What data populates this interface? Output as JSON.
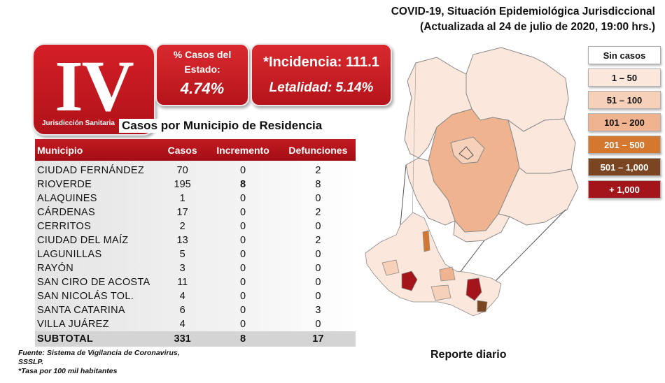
{
  "header": {
    "line1": "COVID-19, Situación Epidemiológica Jurisdiccional",
    "line2": "(Actualizada al 24 de julio de 2020, 19:00 hrs.)"
  },
  "badge": {
    "roman": "IV",
    "subtitle": "Jurisdicción Sanitaria"
  },
  "pct_card": {
    "label": "% Casos del Estado:",
    "value": "4.74%"
  },
  "incidence_card": {
    "incidence": "*Incidencia: 111.1",
    "lethality": "Letalidad: 5.14%"
  },
  "table": {
    "title": "Casos por Municipio  de Residencia",
    "headers": [
      "Municipio",
      "Casos",
      "Incremento",
      "Defunciones"
    ],
    "rows": [
      {
        "municipio": "CIUDAD FERNÁNDEZ",
        "casos": "70",
        "incremento": "0",
        "defunciones": "2"
      },
      {
        "municipio": "RIOVERDE",
        "casos": "195",
        "incremento": "8",
        "defunciones": "8"
      },
      {
        "municipio": "ALAQUINES",
        "casos": "1",
        "incremento": "0",
        "defunciones": "0"
      },
      {
        "municipio": "CÁRDENAS",
        "casos": "17",
        "incremento": "0",
        "defunciones": "2"
      },
      {
        "municipio": "CERRITOS",
        "casos": "2",
        "incremento": "0",
        "defunciones": "0"
      },
      {
        "municipio": "CIUDAD DEL MAÍZ",
        "casos": "13",
        "incremento": "0",
        "defunciones": "2"
      },
      {
        "municipio": "LAGUNILLAS",
        "casos": "5",
        "incremento": "0",
        "defunciones": "0"
      },
      {
        "municipio": "RAYÓN",
        "casos": "3",
        "incremento": "0",
        "defunciones": "0"
      },
      {
        "municipio": "SAN CIRO DE ACOSTA",
        "casos": "11",
        "incremento": "0",
        "defunciones": "0"
      },
      {
        "municipio": "SAN NICOLÁS TOL.",
        "casos": "4",
        "incremento": "0",
        "defunciones": "0"
      },
      {
        "municipio": "SANTA CATARINA",
        "casos": "6",
        "incremento": "0",
        "defunciones": "3"
      },
      {
        "municipio": "VILLA JUÁREZ",
        "casos": "4",
        "incremento": "0",
        "defunciones": "0"
      }
    ],
    "subtotal": {
      "municipio": "SUBTOTAL",
      "casos": "331",
      "incremento": "8",
      "defunciones": "17"
    }
  },
  "footnote": {
    "line1": "Fuente: Sistema de Vigilancia  de Coronavirus,",
    "line2": "SSSLP.",
    "line3": "*Tasa por 100 mil habitantes"
  },
  "report_label": "Reporte diario",
  "legend": [
    {
      "label": "Sin casos",
      "color": "#ffffff",
      "text_color": "#111111"
    },
    {
      "label": "1 – 50",
      "color": "#fbe7dc",
      "text_color": "#111111"
    },
    {
      "label": "51 – 100",
      "color": "#f6d0b8",
      "text_color": "#111111"
    },
    {
      "label": "101 – 200",
      "color": "#efb48f",
      "text_color": "#111111"
    },
    {
      "label": "201 – 500",
      "color": "#d5782f",
      "text_color": "#ffffff"
    },
    {
      "label": "501 – 1,000",
      "color": "#7a4520",
      "text_color": "#ffffff"
    },
    {
      "label": "+ 1,000",
      "color": "#a3141b",
      "text_color": "#ffffff"
    }
  ]
}
